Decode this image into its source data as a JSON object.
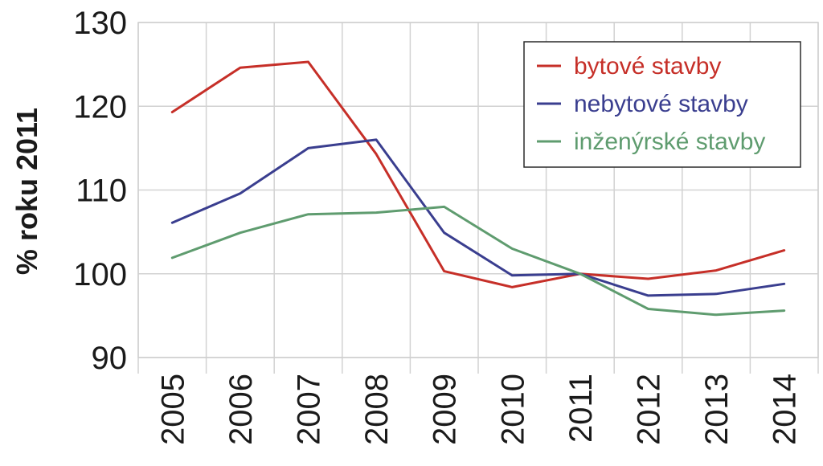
{
  "chart_data": {
    "type": "line",
    "ylabel": "% roku 2011",
    "xlabel": "",
    "ylim": [
      90,
      130
    ],
    "yticks": [
      90,
      100,
      110,
      120,
      130
    ],
    "categories": [
      "2005",
      "2006",
      "2007",
      "2008",
      "2009",
      "2010",
      "2011",
      "2012",
      "2013",
      "2014"
    ],
    "grid": true,
    "legend_position": "top-right",
    "series": [
      {
        "name": "bytové stavby",
        "color": "#c62f28",
        "values": [
          119.3,
          124.6,
          125.3,
          114.3,
          100.3,
          98.4,
          100.0,
          99.4,
          100.4,
          102.8
        ]
      },
      {
        "name": "nebytové stavby",
        "color": "#3a3e8f",
        "values": [
          106.1,
          109.6,
          115.0,
          116.0,
          104.9,
          99.8,
          100.0,
          97.4,
          97.6,
          98.8
        ]
      },
      {
        "name": "inženýrské stavby",
        "color": "#5f9c6f",
        "values": [
          101.9,
          104.9,
          107.1,
          107.3,
          108.0,
          103.0,
          100.0,
          95.8,
          95.1,
          95.6
        ]
      }
    ]
  }
}
